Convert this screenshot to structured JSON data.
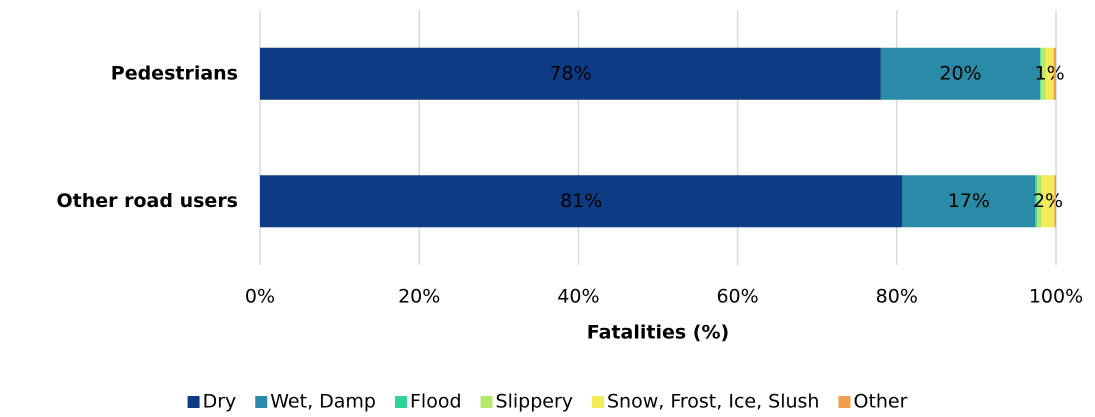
{
  "chart_data": {
    "type": "stacked-bar-horizontal",
    "x_label": "Fatalities (%)",
    "categories": [
      "Pedestrians",
      "Other road users"
    ],
    "series": [
      {
        "name": "Dry",
        "color": "#0d3b84",
        "values": [
          78,
          80.7
        ],
        "value_labels": [
          "78%",
          "81%"
        ]
      },
      {
        "name": "Wet, Damp",
        "color": "#2a8ba8",
        "values": [
          20,
          16.7
        ],
        "value_labels": [
          "20%",
          "17%"
        ]
      },
      {
        "name": "Flood",
        "color": "#2ed39a",
        "values": [
          0.1,
          0.2
        ],
        "value_labels": [
          null,
          null
        ]
      },
      {
        "name": "Slippery",
        "color": "#b8e86a",
        "values": [
          0.6,
          0.6
        ],
        "value_labels": [
          null,
          null
        ]
      },
      {
        "name": "Snow, Frost, Ice, Slush",
        "color": "#f2ec5a",
        "values": [
          1,
          1.6
        ],
        "value_labels": [
          "1%",
          "2%"
        ]
      },
      {
        "name": "Other",
        "color": "#f19d4b",
        "values": [
          0.3,
          0.2
        ],
        "value_labels": [
          null,
          null
        ]
      }
    ],
    "xlim": [
      0,
      100
    ],
    "xticks": [
      {
        "value": 0,
        "label": "0%"
      },
      {
        "value": 20,
        "label": "20%"
      },
      {
        "value": 40,
        "label": "40%"
      },
      {
        "value": 60,
        "label": "60%"
      },
      {
        "value": 80,
        "label": "80%"
      },
      {
        "value": 100,
        "label": "100%"
      }
    ],
    "grid": true,
    "legend": "bottom"
  }
}
